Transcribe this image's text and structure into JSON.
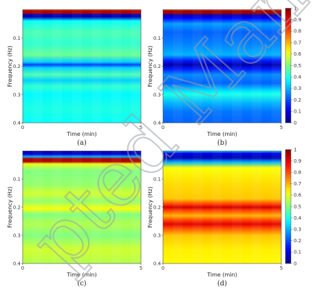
{
  "watermark": "pted Manu",
  "chart_data": [
    {
      "type": "heatmap",
      "panel_label": "(a)",
      "xlabel": "Time (min)",
      "ylabel": "Frequency (Hz)",
      "xlim": [
        0,
        5
      ],
      "ylim": [
        0.4,
        0
      ],
      "xticks": [
        "0",
        "5"
      ],
      "yticks": [
        "0.1",
        "0.2",
        "0.3",
        "0.4"
      ],
      "colorbar": false,
      "profile": [
        [
          0.0,
          0.78
        ],
        [
          0.004,
          0.95
        ],
        [
          0.012,
          0.95
        ],
        [
          0.018,
          0.05
        ],
        [
          0.026,
          0.05
        ],
        [
          0.04,
          0.38
        ],
        [
          0.08,
          0.45
        ],
        [
          0.12,
          0.42
        ],
        [
          0.16,
          0.48
        ],
        [
          0.185,
          0.33
        ],
        [
          0.195,
          0.18
        ],
        [
          0.205,
          0.33
        ],
        [
          0.23,
          0.45
        ],
        [
          0.25,
          0.33
        ],
        [
          0.27,
          0.42
        ],
        [
          0.3,
          0.37
        ],
        [
          0.35,
          0.4
        ],
        [
          0.4,
          0.38
        ]
      ]
    },
    {
      "type": "heatmap",
      "panel_label": "(b)",
      "xlabel": "Time (min)",
      "ylabel": "Frequency (Hz)",
      "xlim": [
        0,
        5
      ],
      "ylim": [
        0.4,
        0
      ],
      "xticks": [
        "0",
        "5"
      ],
      "yticks": [
        "0.1",
        "0.2",
        "0.3",
        "0.4"
      ],
      "colorbar": true,
      "colorbar_ticks": [
        "0",
        "0.1",
        "0.2",
        "0.3",
        "0.4",
        "0.5",
        "0.6",
        "0.7",
        "0.8",
        "0.9",
        "1"
      ],
      "profile": [
        [
          0.0,
          0.8
        ],
        [
          0.005,
          0.97
        ],
        [
          0.012,
          0.97
        ],
        [
          0.02,
          0.05
        ],
        [
          0.03,
          0.12
        ],
        [
          0.05,
          0.28
        ],
        [
          0.08,
          0.22
        ],
        [
          0.12,
          0.25
        ],
        [
          0.16,
          0.3
        ],
        [
          0.18,
          0.15
        ],
        [
          0.195,
          0.04
        ],
        [
          0.21,
          0.15
        ],
        [
          0.23,
          0.26
        ],
        [
          0.26,
          0.22
        ],
        [
          0.29,
          0.36
        ],
        [
          0.3,
          0.4
        ],
        [
          0.33,
          0.3
        ],
        [
          0.36,
          0.24
        ],
        [
          0.4,
          0.22
        ]
      ]
    },
    {
      "type": "heatmap",
      "panel_label": "(c)",
      "xlabel": "Time (min)",
      "ylabel": "Frequency (Hz)",
      "xlim": [
        0,
        5
      ],
      "ylim": [
        0.4,
        0
      ],
      "xticks": [
        "0",
        "5"
      ],
      "yticks": [
        "0.1",
        "0.2",
        "0.3",
        "0.4"
      ],
      "colorbar": false,
      "profile": [
        [
          0.0,
          0.05
        ],
        [
          0.012,
          0.08
        ],
        [
          0.02,
          0.3
        ],
        [
          0.028,
          0.95
        ],
        [
          0.038,
          0.95
        ],
        [
          0.046,
          0.6
        ],
        [
          0.07,
          0.5
        ],
        [
          0.12,
          0.52
        ],
        [
          0.15,
          0.58
        ],
        [
          0.18,
          0.52
        ],
        [
          0.205,
          0.62
        ],
        [
          0.225,
          0.5
        ],
        [
          0.26,
          0.55
        ],
        [
          0.3,
          0.5
        ],
        [
          0.35,
          0.58
        ],
        [
          0.4,
          0.55
        ]
      ]
    },
    {
      "type": "heatmap",
      "panel_label": "(d)",
      "xlabel": "Time (min)",
      "ylabel": "Frequency (Hz)",
      "xlim": [
        0,
        5
      ],
      "ylim": [
        0.4,
        0
      ],
      "xticks": [
        "0",
        "5"
      ],
      "yticks": [
        "0.1",
        "0.2",
        "0.3",
        "0.4"
      ],
      "colorbar": true,
      "colorbar_ticks": [
        "0",
        "0.1",
        "0.2",
        "0.3",
        "0.4",
        "0.5",
        "0.6",
        "0.7",
        "0.8",
        "0.9",
        "1"
      ],
      "profile": [
        [
          0.0,
          0.35
        ],
        [
          0.008,
          0.1
        ],
        [
          0.025,
          0.05
        ],
        [
          0.04,
          0.3
        ],
        [
          0.06,
          0.62
        ],
        [
          0.12,
          0.66
        ],
        [
          0.17,
          0.68
        ],
        [
          0.19,
          0.82
        ],
        [
          0.2,
          0.92
        ],
        [
          0.21,
          0.82
        ],
        [
          0.23,
          0.7
        ],
        [
          0.245,
          0.8
        ],
        [
          0.26,
          0.9
        ],
        [
          0.275,
          0.8
        ],
        [
          0.3,
          0.68
        ],
        [
          0.35,
          0.64
        ],
        [
          0.4,
          0.63
        ]
      ]
    }
  ]
}
